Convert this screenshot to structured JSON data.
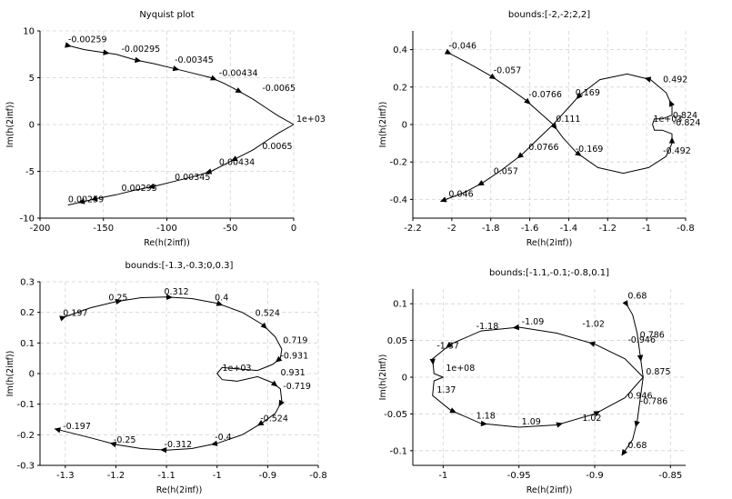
{
  "chart_data": [
    {
      "type": "line",
      "title": "Nyquist plot",
      "xlabel": "Re(h(2iπf))",
      "ylabel": "Im(h(2iπf))",
      "xlim": [
        -200,
        0
      ],
      "ylim": [
        -10,
        10
      ],
      "xticks": [
        "-200",
        "-150",
        "-100",
        "-50",
        "0"
      ],
      "yticks": [
        "10",
        "5",
        "0",
        "-5",
        "-10"
      ],
      "grid": true,
      "series": [
        {
          "points": [
            [
              -180,
              8.5
            ],
            [
              -165,
              8.0
            ],
            [
              -150,
              7.7
            ],
            [
              -140,
              7.5
            ],
            [
              -125,
              6.9
            ],
            [
              -110,
              6.5
            ],
            [
              -95,
              6.0
            ],
            [
              -80,
              5.5
            ],
            [
              -65,
              5.0
            ],
            [
              -55,
              4.4
            ],
            [
              -45,
              3.7
            ],
            [
              -32,
              2.7
            ],
            [
              -22,
              1.8
            ],
            [
              -12,
              0.9
            ],
            [
              0,
              0
            ]
          ],
          "arrow_at": [
            0,
            2,
            4,
            6,
            8,
            10
          ]
        },
        {
          "points": [
            [
              0,
              0
            ],
            [
              -12,
              -0.9
            ],
            [
              -22,
              -1.8
            ],
            [
              -32,
              -2.7
            ],
            [
              -45,
              -3.6
            ],
            [
              -55,
              -4.3
            ],
            [
              -65,
              -5.0
            ],
            [
              -80,
              -5.6
            ],
            [
              -95,
              -6.1
            ],
            [
              -110,
              -6.6
            ],
            [
              -125,
              -7.0
            ],
            [
              -140,
              -7.5
            ],
            [
              -155,
              -7.9
            ],
            [
              -165,
              -8.2
            ],
            [
              -178,
              -8.6
            ]
          ],
          "arrow_at": [
            4,
            6,
            9,
            12,
            13
          ]
        }
      ],
      "labels": [
        {
          "text": "-0.00259",
          "x": -180,
          "y": 8.5
        },
        {
          "text": "-0.00295",
          "x": -138,
          "y": 7.5
        },
        {
          "text": "-0.00345",
          "x": -96,
          "y": 6.3
        },
        {
          "text": "-0.00434",
          "x": -61,
          "y": 4.9
        },
        {
          "text": "-0.0065",
          "x": -27,
          "y": 3.3
        },
        {
          "text": "1e+03",
          "x": 0,
          "y": 0
        },
        {
          "text": "0.0065",
          "x": -27,
          "y": -2.9
        },
        {
          "text": "0.00434",
          "x": -61,
          "y": -4.6
        },
        {
          "text": "0.00345",
          "x": -96,
          "y": -6.2
        },
        {
          "text": "0.00295",
          "x": -138,
          "y": -7.4
        },
        {
          "text": "0.00259",
          "x": -180,
          "y": -8.6
        }
      ]
    },
    {
      "type": "line",
      "title": "bounds:[-2,-2;2,2]",
      "xlabel": "Re(h(2iπf))",
      "ylabel": "Im(h(2iπf))",
      "xlim": [
        -2.2,
        -0.8
      ],
      "ylim": [
        -0.5,
        0.5
      ],
      "xticks": [
        "-2.2",
        "-2",
        "-1.8",
        "-1.6",
        "-1.4",
        "-1.2",
        "-1",
        "-0.8"
      ],
      "yticks": [
        "0.4",
        "0.2",
        "0",
        "-0.2",
        "-0.4"
      ],
      "grid": true,
      "series": [
        {
          "points": [
            [
              -2.03,
              0.39
            ],
            [
              -1.92,
              0.33
            ],
            [
              -1.8,
              0.26
            ],
            [
              -1.7,
              0.19
            ],
            [
              -1.62,
              0.13
            ],
            [
              -1.55,
              0.065
            ],
            [
              -1.48,
              0
            ],
            [
              -1.43,
              -0.07
            ],
            [
              -1.36,
              -0.15
            ],
            [
              -1.25,
              -0.23
            ],
            [
              -1.12,
              -0.26
            ],
            [
              -0.99,
              -0.23
            ],
            [
              -0.9,
              -0.17
            ],
            [
              -0.87,
              -0.1
            ],
            [
              -0.87,
              -0.05
            ],
            [
              -0.92,
              -0.03
            ],
            [
              -0.96,
              -0.03
            ],
            [
              -0.97,
              0.0
            ],
            [
              -0.96,
              0.03
            ],
            [
              -0.92,
              0.03
            ],
            [
              -0.87,
              0.05
            ],
            [
              -0.87,
              0.1
            ],
            [
              -0.9,
              0.17
            ],
            [
              -0.98,
              0.24
            ],
            [
              -1.1,
              0.27
            ],
            [
              -1.24,
              0.24
            ],
            [
              -1.34,
              0.16
            ],
            [
              -1.41,
              0.08
            ],
            [
              -1.48,
              0
            ],
            [
              -1.55,
              -0.07
            ],
            [
              -1.64,
              -0.16
            ],
            [
              -1.74,
              -0.24
            ],
            [
              -1.84,
              -0.31
            ],
            [
              -1.93,
              -0.36
            ],
            [
              -2.03,
              -0.4
            ]
          ],
          "arrow_at": [
            0,
            2,
            4,
            6,
            8,
            13,
            21,
            23,
            26,
            30,
            32,
            34
          ]
        }
      ],
      "labels": [
        {
          "text": "-0.046",
          "x": -2.03,
          "y": 0.39
        },
        {
          "text": "-0.057",
          "x": -1.8,
          "y": 0.26
        },
        {
          "text": "-0.0766",
          "x": -1.62,
          "y": 0.13
        },
        {
          "text": "0.169",
          "x": -1.38,
          "y": 0.14
        },
        {
          "text": "0.111",
          "x": -1.48,
          "y": 0.0
        },
        {
          "text": "0.492",
          "x": -0.93,
          "y": 0.21
        },
        {
          "text": "1e+03",
          "x": -0.98,
          "y": 0.0
        },
        {
          "text": "0.824",
          "x": -0.88,
          "y": 0.02
        },
        {
          "text": "-0.824",
          "x": -0.88,
          "y": -0.02
        },
        {
          "text": "0.0766",
          "x": -1.62,
          "y": -0.15
        },
        {
          "text": "-0.169",
          "x": -1.38,
          "y": -0.16
        },
        {
          "text": "-0.492",
          "x": -0.93,
          "y": -0.17
        },
        {
          "text": "0.057",
          "x": -1.8,
          "y": -0.28
        },
        {
          "text": "0.046",
          "x": -2.03,
          "y": -0.4
        }
      ]
    },
    {
      "type": "line",
      "title": "bounds:[-1.3,-0.3;0,0.3]",
      "xlabel": "Re(h(2iπf))",
      "ylabel": "Im(h(2iπf))",
      "xlim": [
        -1.35,
        -0.8
      ],
      "ylim": [
        -0.3,
        0.3
      ],
      "xticks": [
        "-1.3",
        "-1.2",
        "-1.1",
        "-1",
        "-0.9",
        "-0.8"
      ],
      "yticks": [
        "0.3",
        "0.2",
        "0.1",
        "0",
        "-0.1",
        "-0.2",
        "-0.3"
      ],
      "grid": true,
      "series": [
        {
          "points": [
            [
              -1.31,
              0.18
            ],
            [
              -1.25,
              0.215
            ],
            [
              -1.2,
              0.235
            ],
            [
              -1.15,
              0.248
            ],
            [
              -1.1,
              0.25
            ],
            [
              -1.05,
              0.245
            ],
            [
              -1.0,
              0.23
            ],
            [
              -0.95,
              0.2
            ],
            [
              -0.91,
              0.16
            ],
            [
              -0.885,
              0.12
            ],
            [
              -0.872,
              0.08
            ],
            [
              -0.875,
              0.05
            ],
            [
              -0.89,
              0.03
            ],
            [
              -0.92,
              0.01
            ],
            [
              -0.96,
              0.015
            ],
            [
              -0.99,
              0.02
            ],
            [
              -1.0,
              0.0
            ],
            [
              -0.99,
              -0.02
            ],
            [
              -0.96,
              -0.025
            ],
            [
              -0.92,
              -0.01
            ],
            [
              -0.89,
              -0.03
            ],
            [
              -0.875,
              -0.05
            ],
            [
              -0.872,
              -0.09
            ],
            [
              -0.885,
              -0.13
            ],
            [
              -0.91,
              -0.16
            ],
            [
              -0.95,
              -0.2
            ],
            [
              -1.0,
              -0.228
            ],
            [
              -1.05,
              -0.245
            ],
            [
              -1.1,
              -0.25
            ],
            [
              -1.15,
              -0.245
            ],
            [
              -1.2,
              -0.232
            ],
            [
              -1.25,
              -0.21
            ],
            [
              -1.31,
              -0.185
            ]
          ],
          "arrow_at": [
            0,
            2,
            4,
            6,
            8,
            11,
            20,
            22,
            24,
            26,
            28,
            30,
            32
          ]
        }
      ],
      "labels": [
        {
          "text": "0.197",
          "x": -1.31,
          "y": 0.18
        },
        {
          "text": "0.25",
          "x": -1.22,
          "y": 0.23
        },
        {
          "text": "0.312",
          "x": -1.11,
          "y": 0.25
        },
        {
          "text": "0.4",
          "x": -1.01,
          "y": 0.23
        },
        {
          "text": "0.524",
          "x": -0.93,
          "y": 0.18
        },
        {
          "text": "0.719",
          "x": -0.875,
          "y": 0.09
        },
        {
          "text": "-0.931",
          "x": -0.88,
          "y": 0.04
        },
        {
          "text": "1e+03",
          "x": -0.995,
          "y": 0.0
        },
        {
          "text": "0.931",
          "x": -0.88,
          "y": -0.015
        },
        {
          "text": "-0.719",
          "x": -0.875,
          "y": -0.06
        },
        {
          "text": "-0.524",
          "x": -0.92,
          "y": -0.165
        },
        {
          "text": "-0.4",
          "x": -1.01,
          "y": -0.225
        },
        {
          "text": "-0.312",
          "x": -1.11,
          "y": -0.25
        },
        {
          "text": "-0.25",
          "x": -1.21,
          "y": -0.235
        },
        {
          "text": "-0.197",
          "x": -1.31,
          "y": -0.19
        }
      ]
    },
    {
      "type": "line",
      "title": "bounds:[-1.1,-0.1;-0.8,0.1]",
      "xlabel": "Re(h(2iπf))",
      "ylabel": "Im(h(2iπf))",
      "xlim": [
        -1.02,
        -0.84
      ],
      "ylim": [
        -0.12,
        0.12
      ],
      "xticks": [
        "-1",
        "-0.95",
        "-0.9",
        "-0.85"
      ],
      "yticks": [
        "0.1",
        "0.05",
        "0",
        "-0.05",
        "-0.1"
      ],
      "grid": true,
      "series": [
        {
          "points": [
            [
              -0.88,
              0.103
            ],
            [
              -0.875,
              0.085
            ],
            [
              -0.872,
              0.06
            ],
            [
              -0.87,
              0.03
            ],
            [
              -0.868,
              0.0
            ],
            [
              -0.87,
              -0.03
            ],
            [
              -0.872,
              -0.06
            ],
            [
              -0.875,
              -0.085
            ],
            [
              -0.88,
              -0.1
            ]
          ],
          "arrow_at": [
            0,
            3,
            6,
            8
          ]
        },
        {
          "points": [
            [
              -0.868,
              0.0
            ],
            [
              -0.88,
              0.025
            ],
            [
              -0.9,
              0.045
            ],
            [
              -0.925,
              0.06
            ],
            [
              -0.95,
              0.068
            ],
            [
              -0.975,
              0.063
            ],
            [
              -0.995,
              0.045
            ],
            [
              -1.007,
              0.025
            ],
            [
              -1.006,
              0.005
            ],
            [
              -1.0,
              0.0
            ],
            [
              -1.006,
              -0.005
            ],
            [
              -1.007,
              -0.025
            ],
            [
              -0.995,
              -0.045
            ],
            [
              -0.975,
              -0.063
            ],
            [
              -0.95,
              -0.068
            ],
            [
              -0.925,
              -0.065
            ],
            [
              -0.9,
              -0.05
            ],
            [
              -0.88,
              -0.028
            ],
            [
              -0.868,
              0.0
            ]
          ],
          "arrow_at": [
            2,
            4,
            6,
            7,
            12,
            13,
            15,
            16
          ]
        }
      ],
      "labels": [
        {
          "text": "0.68",
          "x": -0.88,
          "y": 0.103
        },
        {
          "text": "-1.18",
          "x": -0.98,
          "y": 0.062
        },
        {
          "text": "-1.09",
          "x": -0.95,
          "y": 0.068
        },
        {
          "text": "-1.02",
          "x": -0.91,
          "y": 0.065
        },
        {
          "text": "-0.946",
          "x": -0.88,
          "y": 0.043
        },
        {
          "text": "0.786",
          "x": -0.872,
          "y": 0.05
        },
        {
          "text": "-1.37",
          "x": -1.006,
          "y": 0.035
        },
        {
          "text": "1e+08",
          "x": -1.0,
          "y": 0.005
        },
        {
          "text": "0.875",
          "x": -0.868,
          "y": 0.0
        },
        {
          "text": "1.37",
          "x": -1.006,
          "y": -0.025
        },
        {
          "text": "0.946",
          "x": -0.88,
          "y": -0.033
        },
        {
          "text": "-0.786",
          "x": -0.872,
          "y": -0.04
        },
        {
          "text": "1.18",
          "x": -0.98,
          "y": -0.06
        },
        {
          "text": "1.09",
          "x": -0.95,
          "y": -0.068
        },
        {
          "text": "1.02",
          "x": -0.91,
          "y": -0.063
        },
        {
          "text": "0.68",
          "x": -0.88,
          "y": -0.1
        }
      ]
    }
  ]
}
